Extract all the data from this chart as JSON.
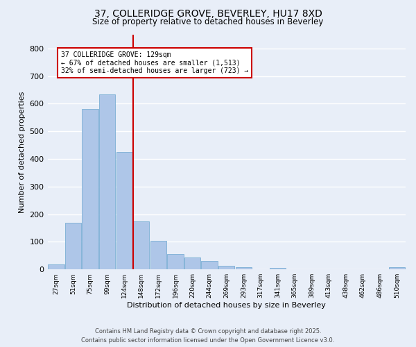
{
  "title_line1": "37, COLLERIDGE GROVE, BEVERLEY, HU17 8XD",
  "title_line2": "Size of property relative to detached houses in Beverley",
  "xlabel": "Distribution of detached houses by size in Beverley",
  "ylabel": "Number of detached properties",
  "bin_labels": [
    "27sqm",
    "51sqm",
    "75sqm",
    "99sqm",
    "124sqm",
    "148sqm",
    "172sqm",
    "196sqm",
    "220sqm",
    "244sqm",
    "269sqm",
    "293sqm",
    "317sqm",
    "341sqm",
    "365sqm",
    "389sqm",
    "413sqm",
    "438sqm",
    "462sqm",
    "486sqm",
    "510sqm"
  ],
  "bar_values": [
    17,
    168,
    580,
    635,
    425,
    173,
    103,
    57,
    44,
    30,
    12,
    8,
    0,
    6,
    0,
    0,
    0,
    0,
    0,
    0,
    7
  ],
  "bar_color": "#aec6e8",
  "bar_edgecolor": "#7aafd4",
  "vline_bin_index": 4,
  "vline_color": "#cc0000",
  "annotation_text": "37 COLLERIDGE GROVE: 129sqm\n← 67% of detached houses are smaller (1,513)\n32% of semi-detached houses are larger (723) →",
  "annotation_box_color": "#ffffff",
  "annotation_box_edgecolor": "#cc0000",
  "ylim": [
    0,
    850
  ],
  "yticks": [
    0,
    100,
    200,
    300,
    400,
    500,
    600,
    700,
    800
  ],
  "footer_line1": "Contains HM Land Registry data © Crown copyright and database right 2025.",
  "footer_line2": "Contains public sector information licensed under the Open Government Licence v3.0.",
  "background_color": "#e8eef8",
  "grid_color": "#ffffff"
}
